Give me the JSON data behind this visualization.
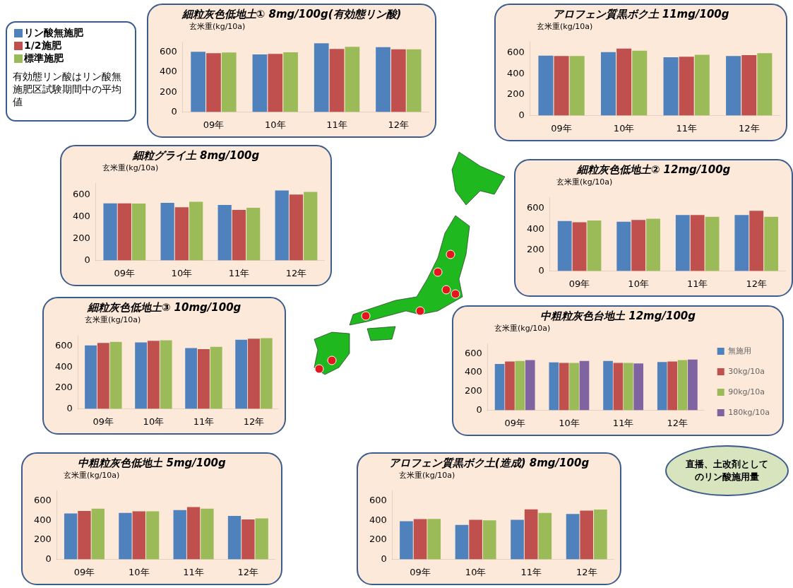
{
  "chart_data": [
    {
      "type": "bar",
      "title": "細粒灰色低地土① 8mg/100g(有効態リン酸)",
      "ylabel": "玄米重(kg/10a)",
      "categories": [
        "09年",
        "10年",
        "11年",
        "12年"
      ],
      "ylim": [
        0,
        700
      ],
      "yticks": [
        0,
        200,
        400,
        600
      ],
      "legend": "left",
      "annotations": [
        "有効態リン酸はリン酸無施肥区試験期間中の平均値"
      ],
      "series": [
        {
          "name": "リン酸無施肥",
          "color": "#4f81bd",
          "values": [
            605,
            578,
            690,
            650
          ]
        },
        {
          "name": "1/2施肥",
          "color": "#c0504d",
          "values": [
            590,
            583,
            633,
            630
          ]
        },
        {
          "name": "標準施肥",
          "color": "#9bbb59",
          "values": [
            598,
            600,
            655,
            630
          ]
        }
      ]
    },
    {
      "type": "bar",
      "title": "アロフェン質黒ボク土 11mg/100g",
      "ylabel": "玄米重(kg/10a)",
      "categories": [
        "09年",
        "10年",
        "11年",
        "12年"
      ],
      "ylim": [
        0,
        700
      ],
      "yticks": [
        0,
        200,
        400,
        600
      ],
      "series": [
        {
          "color": "#4f81bd",
          "values": [
            572,
            605,
            557,
            568
          ]
        },
        {
          "color": "#c0504d",
          "values": [
            568,
            640,
            562,
            577
          ]
        },
        {
          "color": "#9bbb59",
          "values": [
            568,
            620,
            580,
            595
          ]
        }
      ]
    },
    {
      "type": "bar",
      "title": "細粒グライ土 8mg/100g",
      "ylabel": "玄米重(kg/10a)",
      "categories": [
        "09年",
        "10年",
        "11年",
        "12年"
      ],
      "ylim": [
        0,
        700
      ],
      "yticks": [
        0,
        200,
        400,
        600
      ],
      "series": [
        {
          "color": "#4f81bd",
          "values": [
            520,
            525,
            505,
            638
          ]
        },
        {
          "color": "#c0504d",
          "values": [
            520,
            485,
            460,
            600
          ]
        },
        {
          "color": "#9bbb59",
          "values": [
            518,
            535,
            480,
            625
          ]
        }
      ]
    },
    {
      "type": "bar",
      "title": "細粒灰色低地土② 12mg/100g",
      "ylabel": "玄米重(kg/10a)",
      "categories": [
        "09年",
        "10年",
        "11年",
        "12年"
      ],
      "ylim": [
        0,
        700
      ],
      "yticks": [
        0,
        200,
        400,
        600
      ],
      "series": [
        {
          "color": "#4f81bd",
          "values": [
            478,
            470,
            535,
            535
          ]
        },
        {
          "color": "#c0504d",
          "values": [
            465,
            487,
            535,
            575
          ]
        },
        {
          "color": "#9bbb59",
          "values": [
            482,
            500,
            518,
            518
          ]
        }
      ]
    },
    {
      "type": "bar",
      "title": "細粒灰色低地土③ 10mg/100g",
      "ylabel": "玄米重(kg/10a)",
      "categories": [
        "09年",
        "10年",
        "11年",
        "12年"
      ],
      "ylim": [
        0,
        700
      ],
      "yticks": [
        0,
        200,
        400,
        600
      ],
      "series": [
        {
          "color": "#4f81bd",
          "values": [
            605,
            635,
            580,
            660
          ]
        },
        {
          "color": "#c0504d",
          "values": [
            630,
            650,
            570,
            670
          ]
        },
        {
          "color": "#9bbb59",
          "values": [
            640,
            655,
            592,
            675
          ]
        }
      ]
    },
    {
      "type": "bar",
      "title": "中粗粒灰色台地土 12mg/100g",
      "ylabel": "玄米重(kg/10a)",
      "categories": [
        "09年",
        "10年",
        "11年",
        "12年"
      ],
      "ylim": [
        0,
        700
      ],
      "yticks": [
        0,
        200,
        400,
        600
      ],
      "legend": "right",
      "annotations": [
        "直播、土改剤としてのリン酸施用量"
      ],
      "series": [
        {
          "name": "無施用",
          "color": "#4f81bd",
          "values": [
            490,
            505,
            520,
            510
          ]
        },
        {
          "name": "30kg/10a",
          "color": "#c0504d",
          "values": [
            515,
            500,
            500,
            515
          ]
        },
        {
          "name": "90kg/10a",
          "color": "#9bbb59",
          "values": [
            520,
            500,
            500,
            530
          ]
        },
        {
          "name": "180kg/10a",
          "color": "#8064a2",
          "values": [
            530,
            520,
            495,
            535
          ]
        }
      ]
    },
    {
      "type": "bar",
      "title": "中粗粒灰色低地土 5mg/100g",
      "ylabel": "玄米重(kg/10a)",
      "categories": [
        "09年",
        "10年",
        "11年",
        "12年"
      ],
      "ylim": [
        0,
        700
      ],
      "yticks": [
        0,
        200,
        400,
        600
      ],
      "series": [
        {
          "color": "#4f81bd",
          "values": [
            470,
            475,
            505,
            445
          ]
        },
        {
          "color": "#c0504d",
          "values": [
            495,
            492,
            535,
            408
          ]
        },
        {
          "color": "#9bbb59",
          "values": [
            520,
            492,
            520,
            420
          ]
        }
      ]
    },
    {
      "type": "bar",
      "title": "アロフェン質黒ボク土(造成) 8mg/100g",
      "ylabel": "玄米重(kg/10a)",
      "categories": [
        "09年",
        "10年",
        "11年",
        "12年"
      ],
      "ylim": [
        0,
        700
      ],
      "yticks": [
        0,
        200,
        400,
        600
      ],
      "series": [
        {
          "color": "#4f81bd",
          "values": [
            390,
            352,
            405,
            465
          ]
        },
        {
          "color": "#c0504d",
          "values": [
            412,
            405,
            512,
            500
          ]
        },
        {
          "color": "#9bbb59",
          "values": [
            415,
            400,
            475,
            510
          ]
        }
      ]
    }
  ]
}
